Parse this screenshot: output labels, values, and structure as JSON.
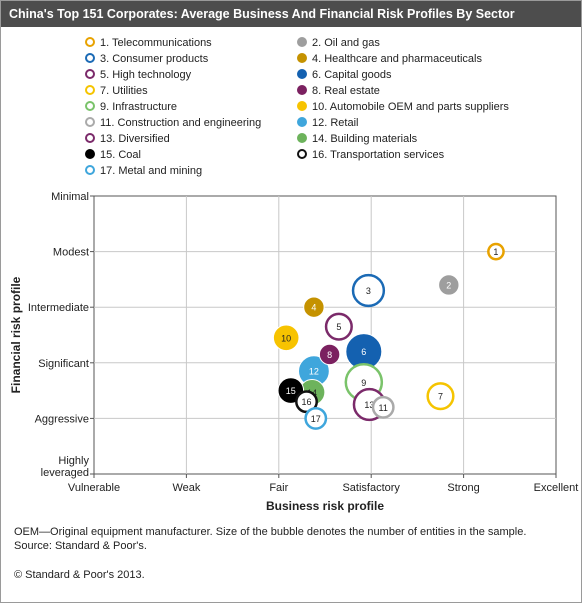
{
  "title": "China's Top 151 Corporates: Average Business And Financial Risk Profiles By Sector",
  "chart_data": {
    "type": "scatter",
    "subtype": "bubble",
    "xlabel": "Business risk profile",
    "ylabel": "Financial risk profile",
    "x_categories": [
      "Vulnerable",
      "Weak",
      "Fair",
      "Satisfactory",
      "Strong",
      "Excellent"
    ],
    "y_categories": [
      "Minimal",
      "Modest",
      "Intermediate",
      "Significant",
      "Aggressive",
      "Highly leveraged"
    ],
    "xlim": [
      1,
      6
    ],
    "ylim": [
      1,
      6
    ],
    "grid": true,
    "legend_position": "top",
    "note": "Higher x = better business risk; y scale: 1 = Minimal (top) to 6 = Highly leveraged (bottom)",
    "series": [
      {
        "id": 1,
        "name": "1. Telecommunications",
        "x": 5.35,
        "y": 2.0,
        "size": 1,
        "color": "#e8a200",
        "hollow": true
      },
      {
        "id": 2,
        "name": "2. Oil and gas",
        "x": 4.84,
        "y": 2.6,
        "size": 2,
        "color": "#9e9e9e",
        "hollow": false
      },
      {
        "id": 3,
        "name": "3. Consumer products",
        "x": 3.97,
        "y": 2.7,
        "size": 4,
        "color": "#1b6ab5",
        "hollow": true
      },
      {
        "id": 4,
        "name": "4. Healthcare and pharmaceuticals",
        "x": 3.38,
        "y": 3.0,
        "size": 2,
        "color": "#c59200",
        "hollow": false
      },
      {
        "id": 5,
        "name": "5. High technology",
        "x": 3.65,
        "y": 3.35,
        "size": 3,
        "color": "#7b2a6a",
        "hollow": true
      },
      {
        "id": 6,
        "name": "6. Capital goods",
        "x": 3.92,
        "y": 3.8,
        "size": 5,
        "color": "#1461b0",
        "hollow": false
      },
      {
        "id": 7,
        "name": "7. Utilities",
        "x": 4.75,
        "y": 4.6,
        "size": 3,
        "color": "#f5c400",
        "hollow": true
      },
      {
        "id": 8,
        "name": "8. Real estate",
        "x": 3.55,
        "y": 3.85,
        "size": 2,
        "color": "#7b2160",
        "hollow": false
      },
      {
        "id": 9,
        "name": "9. Infrastructure",
        "x": 3.92,
        "y": 4.35,
        "size": 5,
        "color": "#7ac36a",
        "hollow": true
      },
      {
        "id": 10,
        "name": "10. Automobile OEM and parts suppliers",
        "x": 3.08,
        "y": 3.55,
        "size": 3,
        "color": "#f7c300",
        "hollow": false
      },
      {
        "id": 11,
        "name": "11. Construction and engineering",
        "x": 4.13,
        "y": 4.8,
        "size": 2,
        "color": "#aaaaaa",
        "hollow": true
      },
      {
        "id": 12,
        "name": "12. Retail",
        "x": 3.38,
        "y": 4.15,
        "size": 4,
        "color": "#3fa6dc",
        "hollow": false
      },
      {
        "id": 13,
        "name": "13. Diversified",
        "x": 3.98,
        "y": 4.75,
        "size": 4,
        "color": "#7b2a6a",
        "hollow": true
      },
      {
        "id": 14,
        "name": "14. Building materials",
        "x": 3.36,
        "y": 4.53,
        "size": 3,
        "color": "#6db35c",
        "hollow": false
      },
      {
        "id": 15,
        "name": "15. Coal",
        "x": 3.13,
        "y": 4.5,
        "size": 3,
        "color": "#000000",
        "hollow": false
      },
      {
        "id": 16,
        "name": "16. Transportation services",
        "x": 3.3,
        "y": 4.7,
        "size": 2,
        "color": "#111111",
        "hollow": true
      },
      {
        "id": 17,
        "name": "17. Metal and mining",
        "x": 3.4,
        "y": 5.0,
        "size": 2,
        "color": "#3fa6dc",
        "hollow": true
      }
    ]
  },
  "bubble_labels": {
    "3": "3",
    "8": "8",
    "6": "6",
    "1": "1"
  },
  "footnotes": {
    "line1": "OEM—Original equipment manufacturer. Size of the bubble denotes the number of entities in the sample.",
    "line2": "Source: Standard & Poor's.",
    "copyright": "© Standard & Poor's 2013."
  }
}
